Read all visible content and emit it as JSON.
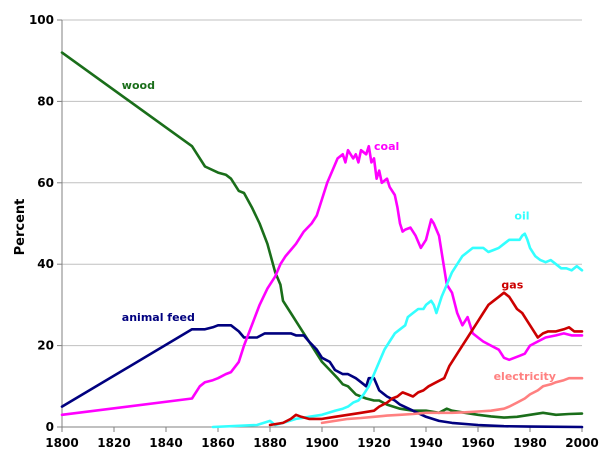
{
  "chart_data": {
    "type": "line",
    "title": "",
    "xlabel": "",
    "ylabel": "Percent",
    "xlim": [
      1800,
      2000
    ],
    "ylim": [
      0,
      100
    ],
    "x_ticks": [
      1800,
      1820,
      1840,
      1860,
      1880,
      1900,
      1920,
      1940,
      1960,
      1980,
      2000
    ],
    "y_ticks": [
      0,
      20,
      40,
      60,
      80,
      100
    ],
    "grid": "horizontal",
    "legend": "inline labels",
    "series": [
      {
        "name": "wood",
        "color": "#1a6e1a",
        "points": [
          [
            1800,
            92
          ],
          [
            1850,
            69
          ],
          [
            1852,
            67
          ],
          [
            1855,
            64
          ],
          [
            1860,
            62.5
          ],
          [
            1863,
            62
          ],
          [
            1865,
            61
          ],
          [
            1868,
            58
          ],
          [
            1870,
            57.5
          ],
          [
            1873,
            54
          ],
          [
            1876,
            50
          ],
          [
            1879,
            45
          ],
          [
            1882,
            38
          ],
          [
            1884,
            35
          ],
          [
            1885,
            31
          ],
          [
            1888,
            28
          ],
          [
            1890,
            26
          ],
          [
            1893,
            23
          ],
          [
            1896,
            20
          ],
          [
            1900,
            16
          ],
          [
            1903,
            14
          ],
          [
            1906,
            12
          ],
          [
            1908,
            10.5
          ],
          [
            1910,
            10
          ],
          [
            1913,
            8
          ],
          [
            1915,
            7.5
          ],
          [
            1917,
            7
          ],
          [
            1920,
            6.5
          ],
          [
            1922,
            6.5
          ],
          [
            1925,
            5.5
          ],
          [
            1930,
            4.5
          ],
          [
            1935,
            4
          ],
          [
            1940,
            4
          ],
          [
            1945,
            3.5
          ],
          [
            1948,
            4.5
          ],
          [
            1950,
            4
          ],
          [
            1955,
            3.5
          ],
          [
            1960,
            3
          ],
          [
            1965,
            2.6
          ],
          [
            1970,
            2.3
          ],
          [
            1975,
            2.5
          ],
          [
            1980,
            3
          ],
          [
            1985,
            3.5
          ],
          [
            1990,
            3
          ],
          [
            1995,
            3.2
          ],
          [
            2000,
            3.3
          ]
        ]
      },
      {
        "name": "animal feed",
        "color": "#00007f",
        "points": [
          [
            1800,
            5
          ],
          [
            1850,
            24
          ],
          [
            1855,
            24
          ],
          [
            1858,
            24.5
          ],
          [
            1860,
            25
          ],
          [
            1865,
            25
          ],
          [
            1868,
            23.5
          ],
          [
            1870,
            22
          ],
          [
            1875,
            22
          ],
          [
            1878,
            23
          ],
          [
            1880,
            23
          ],
          [
            1885,
            23
          ],
          [
            1888,
            23
          ],
          [
            1890,
            22.5
          ],
          [
            1893,
            22.5
          ],
          [
            1895,
            21
          ],
          [
            1898,
            19
          ],
          [
            1900,
            17
          ],
          [
            1903,
            16
          ],
          [
            1905,
            14
          ],
          [
            1908,
            13
          ],
          [
            1910,
            13
          ],
          [
            1913,
            12
          ],
          [
            1915,
            11
          ],
          [
            1917,
            10
          ],
          [
            1918,
            12
          ],
          [
            1920,
            12
          ],
          [
            1922,
            9
          ],
          [
            1925,
            7.5
          ],
          [
            1928,
            6.5
          ],
          [
            1930,
            5.5
          ],
          [
            1935,
            4
          ],
          [
            1940,
            2.5
          ],
          [
            1945,
            1.5
          ],
          [
            1950,
            1
          ],
          [
            1960,
            0.5
          ],
          [
            1970,
            0.2
          ],
          [
            1980,
            0.1
          ],
          [
            2000,
            0
          ]
        ]
      },
      {
        "name": "coal",
        "color": "#ff00ff",
        "points": [
          [
            1800,
            3
          ],
          [
            1850,
            7
          ],
          [
            1853,
            10
          ],
          [
            1855,
            11
          ],
          [
            1858,
            11.5
          ],
          [
            1860,
            12
          ],
          [
            1863,
            13
          ],
          [
            1865,
            13.5
          ],
          [
            1868,
            16
          ],
          [
            1870,
            20
          ],
          [
            1873,
            25
          ],
          [
            1876,
            30
          ],
          [
            1879,
            34
          ],
          [
            1882,
            37
          ],
          [
            1884,
            40
          ],
          [
            1886,
            42
          ],
          [
            1888,
            43.5
          ],
          [
            1890,
            45
          ],
          [
            1893,
            48
          ],
          [
            1896,
            50
          ],
          [
            1898,
            52
          ],
          [
            1900,
            56
          ],
          [
            1902,
            60
          ],
          [
            1904,
            63
          ],
          [
            1906,
            66
          ],
          [
            1908,
            67
          ],
          [
            1909,
            65
          ],
          [
            1910,
            68
          ],
          [
            1912,
            66
          ],
          [
            1913,
            67
          ],
          [
            1914,
            65
          ],
          [
            1915,
            68
          ],
          [
            1917,
            67
          ],
          [
            1918,
            69
          ],
          [
            1919,
            65
          ],
          [
            1920,
            66
          ],
          [
            1921,
            61
          ],
          [
            1922,
            63
          ],
          [
            1923,
            60
          ],
          [
            1925,
            61
          ],
          [
            1926,
            59
          ],
          [
            1928,
            57
          ],
          [
            1929,
            54
          ],
          [
            1930,
            50
          ],
          [
            1931,
            48
          ],
          [
            1932,
            48.5
          ],
          [
            1934,
            49
          ],
          [
            1936,
            47
          ],
          [
            1938,
            44
          ],
          [
            1940,
            46
          ],
          [
            1942,
            51
          ],
          [
            1943,
            50
          ],
          [
            1945,
            47
          ],
          [
            1947,
            39
          ],
          [
            1948,
            35
          ],
          [
            1950,
            33
          ],
          [
            1952,
            28
          ],
          [
            1954,
            25
          ],
          [
            1956,
            27
          ],
          [
            1958,
            23
          ],
          [
            1960,
            22
          ],
          [
            1962,
            21
          ],
          [
            1965,
            20
          ],
          [
            1968,
            19
          ],
          [
            1970,
            17
          ],
          [
            1972,
            16.5
          ],
          [
            1974,
            17
          ],
          [
            1976,
            17.5
          ],
          [
            1978,
            18
          ],
          [
            1980,
            20
          ],
          [
            1983,
            21
          ],
          [
            1986,
            22
          ],
          [
            1990,
            22.5
          ],
          [
            1993,
            23
          ],
          [
            1996,
            22.5
          ],
          [
            2000,
            22.5
          ]
        ]
      },
      {
        "name": "oil",
        "color": "#33ffff",
        "points": [
          [
            1858,
            0
          ],
          [
            1875,
            0.5
          ],
          [
            1880,
            1.5
          ],
          [
            1882,
            0.5
          ],
          [
            1885,
            1
          ],
          [
            1890,
            2
          ],
          [
            1895,
            2.5
          ],
          [
            1900,
            3
          ],
          [
            1905,
            4
          ],
          [
            1908,
            4.5
          ],
          [
            1910,
            5
          ],
          [
            1912,
            6
          ],
          [
            1914,
            6.5
          ],
          [
            1916,
            8
          ],
          [
            1918,
            10
          ],
          [
            1920,
            13
          ],
          [
            1922,
            16
          ],
          [
            1924,
            19
          ],
          [
            1926,
            21
          ],
          [
            1928,
            23
          ],
          [
            1930,
            24
          ],
          [
            1932,
            25
          ],
          [
            1933,
            27
          ],
          [
            1935,
            28
          ],
          [
            1937,
            29
          ],
          [
            1939,
            29
          ],
          [
            1940,
            30
          ],
          [
            1942,
            31
          ],
          [
            1943,
            30
          ],
          [
            1944,
            28
          ],
          [
            1946,
            32
          ],
          [
            1948,
            35
          ],
          [
            1950,
            38
          ],
          [
            1952,
            40
          ],
          [
            1954,
            42
          ],
          [
            1956,
            43
          ],
          [
            1958,
            44
          ],
          [
            1960,
            44
          ],
          [
            1962,
            44
          ],
          [
            1964,
            43
          ],
          [
            1966,
            43.5
          ],
          [
            1968,
            44
          ],
          [
            1970,
            45
          ],
          [
            1972,
            46
          ],
          [
            1974,
            46
          ],
          [
            1976,
            46
          ],
          [
            1977,
            47
          ],
          [
            1978,
            47.5
          ],
          [
            1979,
            46
          ],
          [
            1980,
            44
          ],
          [
            1982,
            42
          ],
          [
            1984,
            41
          ],
          [
            1986,
            40.5
          ],
          [
            1988,
            41
          ],
          [
            1990,
            40
          ],
          [
            1992,
            39
          ],
          [
            1994,
            39
          ],
          [
            1996,
            38.5
          ],
          [
            1998,
            39.5
          ],
          [
            2000,
            38.5
          ]
        ]
      },
      {
        "name": "gas",
        "color": "#cc0000",
        "points": [
          [
            1880,
            0.5
          ],
          [
            1885,
            1
          ],
          [
            1888,
            2
          ],
          [
            1890,
            3
          ],
          [
            1892,
            2.5
          ],
          [
            1895,
            2
          ],
          [
            1900,
            2
          ],
          [
            1905,
            2.5
          ],
          [
            1910,
            3
          ],
          [
            1915,
            3.5
          ],
          [
            1920,
            4
          ],
          [
            1922,
            5
          ],
          [
            1925,
            6
          ],
          [
            1927,
            7
          ],
          [
            1929,
            7.5
          ],
          [
            1930,
            8
          ],
          [
            1931,
            8.5
          ],
          [
            1933,
            8
          ],
          [
            1935,
            7.5
          ],
          [
            1937,
            8.5
          ],
          [
            1939,
            9
          ],
          [
            1941,
            10
          ],
          [
            1944,
            11
          ],
          [
            1947,
            12
          ],
          [
            1949,
            15
          ],
          [
            1952,
            18
          ],
          [
            1954,
            20
          ],
          [
            1956,
            22
          ],
          [
            1958,
            24
          ],
          [
            1960,
            26
          ],
          [
            1962,
            28
          ],
          [
            1964,
            30
          ],
          [
            1966,
            31
          ],
          [
            1968,
            32
          ],
          [
            1970,
            33
          ],
          [
            1972,
            32
          ],
          [
            1973,
            31
          ],
          [
            1975,
            29
          ],
          [
            1977,
            28
          ],
          [
            1979,
            26
          ],
          [
            1981,
            24
          ],
          [
            1983,
            22
          ],
          [
            1985,
            23
          ],
          [
            1987,
            23.5
          ],
          [
            1990,
            23.5
          ],
          [
            1993,
            24
          ],
          [
            1995,
            24.5
          ],
          [
            1997,
            23.5
          ],
          [
            2000,
            23.5
          ]
        ]
      },
      {
        "name": "electricity",
        "color": "#ff8080",
        "points": [
          [
            1900,
            1
          ],
          [
            1905,
            1.5
          ],
          [
            1910,
            2
          ],
          [
            1915,
            2.2
          ],
          [
            1920,
            2.5
          ],
          [
            1925,
            2.8
          ],
          [
            1930,
            3
          ],
          [
            1935,
            3.2
          ],
          [
            1940,
            3.5
          ],
          [
            1945,
            3.5
          ],
          [
            1950,
            3.5
          ],
          [
            1955,
            3.6
          ],
          [
            1960,
            3.8
          ],
          [
            1965,
            4
          ],
          [
            1970,
            4.5
          ],
          [
            1972,
            5
          ],
          [
            1975,
            6
          ],
          [
            1978,
            7
          ],
          [
            1980,
            8
          ],
          [
            1983,
            9
          ],
          [
            1985,
            10
          ],
          [
            1988,
            10.5
          ],
          [
            1990,
            11
          ],
          [
            1993,
            11.5
          ],
          [
            1995,
            12
          ],
          [
            2000,
            12
          ]
        ]
      }
    ]
  }
}
